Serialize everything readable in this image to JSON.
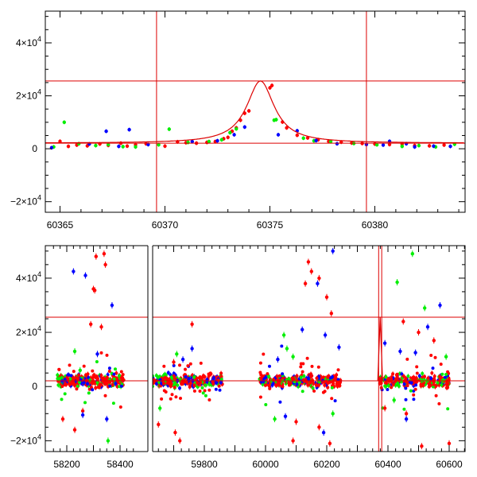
{
  "colors": {
    "red": "#ff0000",
    "green": "#00ee00",
    "blue": "#0000ff",
    "model": "#dd0000",
    "frame": "#000000"
  },
  "chart_data": [
    {
      "type": "scatter",
      "panel": "top",
      "xlim": [
        60364.3,
        60384.3
      ],
      "ylim": [
        -24000,
        52000
      ],
      "x_ticks": [
        {
          "value": 60365,
          "label": "60365"
        },
        {
          "value": 60370,
          "label": "60370"
        },
        {
          "value": 60375,
          "label": "60375"
        },
        {
          "value": 60380,
          "label": "60380"
        }
      ],
      "y_ticks": [
        {
          "value": -20000,
          "mantissa": "−2×10",
          "exp": "4"
        },
        {
          "value": 0,
          "mantissa": "0",
          "exp": ""
        },
        {
          "value": 20000,
          "mantissa": "2×10",
          "exp": "4"
        },
        {
          "value": 40000,
          "mantissa": "4×10",
          "exp": "4"
        }
      ],
      "reference_lines": {
        "vertical": [
          60369.6,
          60379.6
        ],
        "horizontal": [
          2100,
          25600
        ]
      },
      "model_curve": {
        "t0": 60374.55,
        "baseline": 2100,
        "peak": 25600,
        "width": 0.8
      },
      "series": [
        {
          "color_key": "red",
          "points": [
            [
              60365.0,
              2800
            ],
            [
              60365.4,
              900
            ],
            [
              60365.8,
              1400
            ],
            [
              60366.3,
              1100
            ],
            [
              60366.9,
              1800
            ],
            [
              60367.3,
              1300
            ],
            [
              60367.9,
              2100
            ],
            [
              60368.2,
              1000
            ],
            [
              60368.6,
              1500
            ],
            [
              60369.1,
              1900
            ],
            [
              60370.0,
              1000
            ],
            [
              60370.6,
              2600
            ],
            [
              60371.0,
              2300
            ],
            [
              60371.5,
              2100
            ],
            [
              60372.0,
              2400
            ],
            [
              60372.4,
              2700
            ],
            [
              60372.8,
              3800
            ],
            [
              60373.0,
              4300
            ],
            [
              60373.2,
              6600
            ],
            [
              60373.4,
              7900
            ],
            [
              60373.6,
              10800
            ],
            [
              60373.8,
              13400
            ],
            [
              60374.0,
              14300
            ],
            [
              60375.1,
              23900
            ],
            [
              60375.0,
              23000
            ],
            [
              60375.6,
              10100
            ],
            [
              60375.8,
              7900
            ],
            [
              60376.3,
              5100
            ],
            [
              60376.8,
              4100
            ],
            [
              60377.3,
              3400
            ],
            [
              60377.8,
              2800
            ],
            [
              60378.4,
              2500
            ],
            [
              60378.9,
              2200
            ],
            [
              60379.4,
              2000
            ],
            [
              60380.0,
              1800
            ],
            [
              60380.7,
              1600
            ],
            [
              60381.3,
              1700
            ],
            [
              60381.9,
              1200
            ],
            [
              60382.6,
              1100
            ],
            [
              60383.3,
              1400
            ]
          ]
        },
        {
          "color_key": "green",
          "points": [
            [
              60364.7,
              700
            ],
            [
              60365.2,
              10000
            ],
            [
              60365.9,
              1900
            ],
            [
              60366.7,
              1200
            ],
            [
              60367.3,
              1600
            ],
            [
              60368.0,
              800
            ],
            [
              60368.6,
              700
            ],
            [
              60369.7,
              1500
            ],
            [
              60370.2,
              7400
            ],
            [
              60371.1,
              2400
            ],
            [
              60372.1,
              2700
            ],
            [
              60372.7,
              3400
            ],
            [
              60373.1,
              6100
            ],
            [
              60373.4,
              7500
            ],
            [
              60375.2,
              10800
            ],
            [
              60375.3,
              11000
            ],
            [
              60376.6,
              4000
            ],
            [
              60377.1,
              3000
            ],
            [
              60377.9,
              2700
            ],
            [
              60379.0,
              2000
            ],
            [
              60380.1,
              1500
            ],
            [
              60381.3,
              900
            ],
            [
              60382.1,
              1200
            ],
            [
              60382.9,
              700
            ],
            [
              60383.8,
              1700
            ]
          ]
        },
        {
          "color_key": "blue",
          "points": [
            [
              60364.6,
              400
            ],
            [
              60366.4,
              1800
            ],
            [
              60367.2,
              6600
            ],
            [
              60367.8,
              900
            ],
            [
              60368.3,
              7200
            ],
            [
              60369.2,
              1600
            ],
            [
              60371.3,
              2700
            ],
            [
              60372.5,
              3000
            ],
            [
              60373.3,
              5300
            ],
            [
              60373.8,
              8200
            ],
            [
              60375.4,
              5300
            ],
            [
              60376.3,
              6800
            ],
            [
              60377.2,
              3100
            ],
            [
              60378.2,
              1900
            ],
            [
              60379.6,
              1600
            ],
            [
              60380.4,
              1400
            ],
            [
              60380.7,
              2800
            ],
            [
              60381.5,
              1900
            ],
            [
              60381.9,
              700
            ],
            [
              60382.8,
              1000
            ],
            [
              60383.6,
              900
            ]
          ]
        }
      ]
    },
    {
      "type": "scatter",
      "panel": "bottom",
      "xlim": [
        57980,
        60690
      ],
      "ylim": [
        -24000,
        52000
      ],
      "x_ticks": [
        {
          "value": 58200,
          "label": "58200"
        },
        {
          "value": 58400,
          "label": "58400"
        },
        {
          "value": 59800,
          "label": "59800"
        },
        {
          "value": 60000,
          "label": "60000"
        },
        {
          "value": 60200,
          "label": "60200"
        },
        {
          "value": 60400,
          "label": "60400"
        },
        {
          "value": 60600,
          "label": "60600"
        }
      ],
      "axis_break": {
        "from": 58460,
        "to": 59600
      },
      "y_ticks": [
        {
          "value": -20000,
          "mantissa": "−2×10",
          "exp": "4"
        },
        {
          "value": 0,
          "mantissa": "0",
          "exp": ""
        },
        {
          "value": 20000,
          "mantissa": "2×10",
          "exp": "4"
        },
        {
          "value": 40000,
          "mantissa": "4×10",
          "exp": "4"
        }
      ],
      "reference_lines": {
        "vertical": [
          60369.6,
          60379.6
        ],
        "horizontal": [
          2100,
          25600
        ]
      },
      "seasons": [
        {
          "start": 58165,
          "end": 58415,
          "n": 260
        },
        {
          "start": 59630,
          "end": 59860,
          "n": 240
        },
        {
          "start": 59980,
          "end": 60245,
          "n": 260
        },
        {
          "start": 60372,
          "end": 60600,
          "n": 220
        }
      ],
      "outliers": [
        {
          "color_key": "red",
          "points": [
            [
              58310,
              48000
            ],
            [
              58340,
              49000
            ],
            [
              58345,
              45000
            ],
            [
              58300,
              36000
            ],
            [
              58305,
              35500
            ],
            [
              58290,
              23000
            ],
            [
              58330,
              22000
            ],
            [
              58185,
              -12000
            ],
            [
              58230,
              -16000
            ],
            [
              58260,
              -9000
            ],
            [
              59700,
              9000
            ],
            [
              59760,
              23000
            ],
            [
              59705,
              -17000
            ],
            [
              59720,
              -20000
            ],
            [
              59650,
              -14000
            ],
            [
              60140,
              46000
            ],
            [
              60150,
              42500
            ],
            [
              60175,
              40000
            ],
            [
              60200,
              33000
            ],
            [
              60130,
              38000
            ],
            [
              60215,
              27000
            ],
            [
              60100,
              -13000
            ],
            [
              60175,
              -15000
            ],
            [
              60090,
              -20000
            ],
            [
              60210,
              -21000
            ],
            [
              60450,
              24000
            ],
            [
              60500,
              20000
            ],
            [
              60550,
              17000
            ],
            [
              60460,
              -10000
            ],
            [
              60510,
              -22000
            ],
            [
              60600,
              -21000
            ],
            [
              60390,
              -8000
            ]
          ]
        },
        {
          "color_key": "green",
          "points": [
            [
              58250,
              6000
            ],
            [
              58355,
              -20000
            ],
            [
              58230,
              13000
            ],
            [
              59710,
              12000
            ],
            [
              59655,
              -8000
            ],
            [
              60060,
              19000
            ],
            [
              60070,
              14000
            ],
            [
              60090,
              11000
            ],
            [
              60220,
              -10000
            ],
            [
              60030,
              -12000
            ],
            [
              60430,
              38500
            ],
            [
              60480,
              49000
            ],
            [
              60520,
              29000
            ],
            [
              60590,
              11000
            ],
            [
              60420,
              -5000
            ]
          ]
        },
        {
          "color_key": "blue",
          "points": [
            [
              58225,
              42500
            ],
            [
              58270,
              41000
            ],
            [
              58370,
              30000
            ],
            [
              58315,
              12000
            ],
            [
              58260,
              -10500
            ],
            [
              58350,
              -12000
            ],
            [
              59730,
              10000
            ],
            [
              59760,
              14000
            ],
            [
              60040,
              10000
            ],
            [
              60120,
              21000
            ],
            [
              60170,
              38000
            ],
            [
              60220,
              50000
            ],
            [
              60195,
              19000
            ],
            [
              60240,
              14500
            ],
            [
              60065,
              -11000
            ],
            [
              60190,
              -17000
            ],
            [
              60390,
              16000
            ],
            [
              60440,
              13000
            ],
            [
              60530,
              22000
            ],
            [
              60570,
              30000
            ],
            [
              60490,
              12500
            ],
            [
              60460,
              -12000
            ]
          ]
        }
      ]
    }
  ]
}
